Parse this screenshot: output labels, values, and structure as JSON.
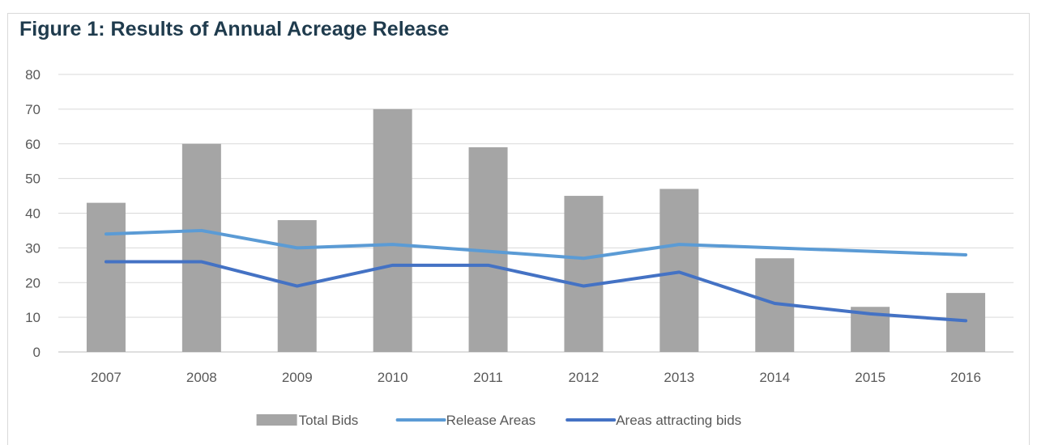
{
  "figure": {
    "title": "Figure 1: Results of Annual Acreage Release"
  },
  "chart_data": {
    "type": "bar",
    "categories": [
      "2007",
      "2008",
      "2009",
      "2010",
      "2011",
      "2012",
      "2013",
      "2014",
      "2015",
      "2016"
    ],
    "ylim": [
      0,
      80
    ],
    "yticks": [
      0,
      10,
      20,
      30,
      40,
      50,
      60,
      70,
      80
    ],
    "grid": true,
    "legend_position": "bottom",
    "series": [
      {
        "name": "Total Bids",
        "type": "bar",
        "color": "#a5a5a5",
        "values": [
          43,
          60,
          38,
          70,
          59,
          45,
          47,
          27,
          13,
          17
        ]
      },
      {
        "name": "Release Areas",
        "type": "line",
        "color": "#5b9bd5",
        "values": [
          34,
          35,
          30,
          31,
          29,
          27,
          31,
          30,
          29,
          28
        ]
      },
      {
        "name": "Areas attracting bids",
        "type": "line",
        "color": "#4472c4",
        "values": [
          26,
          26,
          19,
          25,
          25,
          19,
          23,
          14,
          11,
          9
        ]
      }
    ]
  }
}
